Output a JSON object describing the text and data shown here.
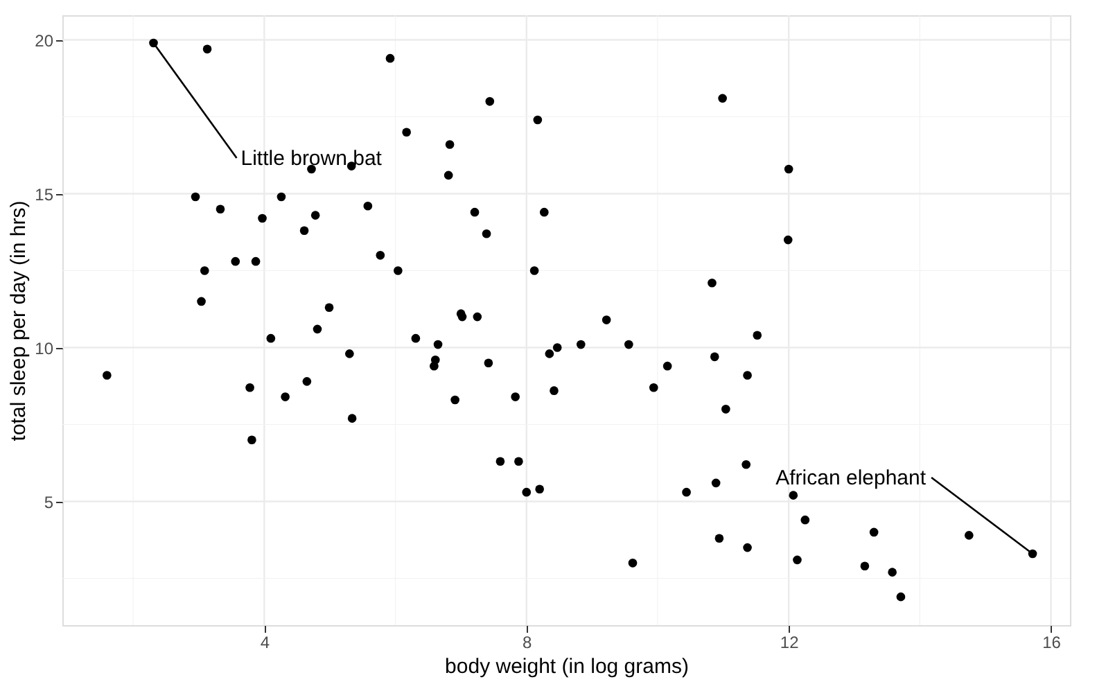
{
  "chart_data": {
    "type": "scatter",
    "xlabel": "body weight (in log grams)",
    "ylabel": "total sleep per day (in hrs)",
    "xlim": [
      0.92,
      16.29
    ],
    "ylim": [
      0.98,
      20.8
    ],
    "xticks": [
      4,
      8,
      12,
      16
    ],
    "yticks": [
      5,
      10,
      15,
      20
    ],
    "grid": true,
    "marker": "circle",
    "series": [
      {
        "color": "#000000",
        "x": [
          2.31,
          3.13,
          5.92,
          6.17,
          7.44,
          6.83,
          6.81,
          4.72,
          5.33,
          2.95,
          3.33,
          4.26,
          3.97,
          4.78,
          5.58,
          4.61,
          3.09,
          3.56,
          3.87,
          3.04,
          4.99,
          5.77,
          6.04,
          4.1,
          4.81,
          5.3,
          4.65,
          4.32,
          3.78,
          3.81,
          5.34,
          1.6,
          6.31,
          6.65,
          6.61,
          6.59,
          7.0,
          7.02,
          7.25,
          7.42,
          6.91,
          7.83,
          7.6,
          7.88,
          8.0,
          8.2,
          9.22,
          8.35,
          8.47,
          8.83,
          8.42,
          9.56,
          9.94,
          10.15,
          9.62,
          10.44,
          10.87,
          11.52,
          11.37,
          11.04,
          11.35,
          10.89,
          10.94,
          11.37,
          12.07,
          12.25,
          12.13,
          13.3,
          13.16,
          13.58,
          13.71,
          14.75,
          15.72,
          12.0,
          11.99,
          10.99,
          8.17,
          7.21,
          7.39,
          8.27,
          8.12,
          10.83
        ],
        "values": [
          19.9,
          19.7,
          19.4,
          17.0,
          18.0,
          16.6,
          15.6,
          15.8,
          15.9,
          14.9,
          14.5,
          14.9,
          14.2,
          14.3,
          14.6,
          13.8,
          12.5,
          12.8,
          12.8,
          11.5,
          11.3,
          13.0,
          12.5,
          10.3,
          10.6,
          9.8,
          8.9,
          8.4,
          8.7,
          7.0,
          7.7,
          9.1,
          10.3,
          10.1,
          9.6,
          9.4,
          11.1,
          11.0,
          11.0,
          9.5,
          8.3,
          8.4,
          6.3,
          6.3,
          5.3,
          5.4,
          10.9,
          9.8,
          10.0,
          10.1,
          8.6,
          10.1,
          8.7,
          9.4,
          3.0,
          5.3,
          9.7,
          10.4,
          9.1,
          8.0,
          6.2,
          5.6,
          3.8,
          3.5,
          5.2,
          4.4,
          3.1,
          4.0,
          2.9,
          2.7,
          1.9,
          3.9,
          3.3,
          15.8,
          13.5,
          18.1,
          17.4,
          14.4,
          13.7,
          14.4,
          12.5,
          12.1
        ]
      }
    ],
    "annotations": [
      {
        "text": "Little brown bat",
        "x": 2.31,
        "y": 19.9
      },
      {
        "text": "African elephant",
        "x": 15.72,
        "y": 3.3
      }
    ]
  }
}
